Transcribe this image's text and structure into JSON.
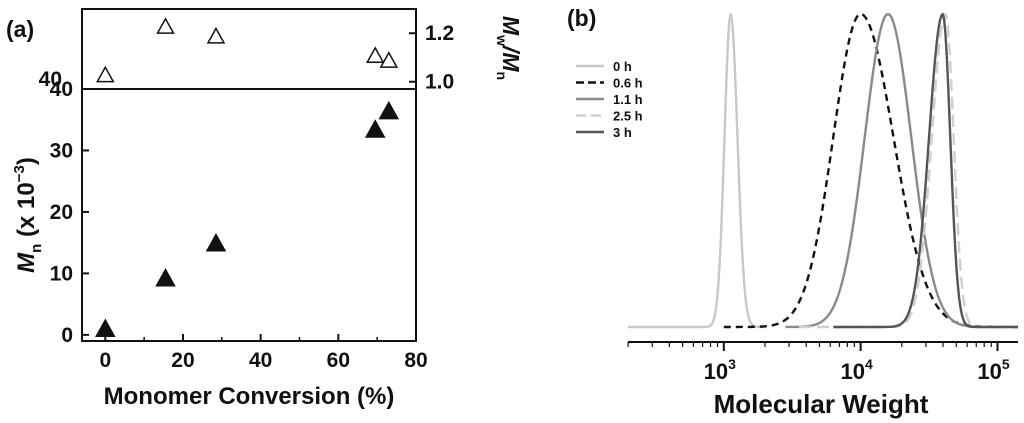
{
  "chart_data": [
    {
      "panel": "(a)",
      "type": "scatter",
      "subplots": [
        {
          "name": "dispersity",
          "ylabel": [
            "M",
            "w",
            "/M",
            "n"
          ],
          "ylim": [
            0.97,
            1.3
          ],
          "yticks": [
            1.0,
            1.2
          ],
          "yticks_labels": [
            "1.0",
            "1.2"
          ],
          "marker": "open-triangle",
          "points": [
            {
              "x": 0,
              "y": 1.03
            },
            {
              "x": 15.5,
              "y": 1.23
            },
            {
              "x": 28.5,
              "y": 1.19
            },
            {
              "x": 69.5,
              "y": 1.11
            },
            {
              "x": 73,
              "y": 1.09
            }
          ]
        },
        {
          "name": "molecular-weight",
          "ylabel": [
            "M",
            "n",
            " (x 10",
            "−3",
            ")"
          ],
          "ylim": [
            -1,
            40
          ],
          "yticks": [
            0,
            10,
            20,
            30,
            40
          ],
          "yticks_labels": [
            "0",
            "10",
            "20",
            "30",
            "40"
          ],
          "marker": "filled-triangle",
          "points": [
            {
              "x": 0,
              "y": 1.1
            },
            {
              "x": 15.5,
              "y": 9.3
            },
            {
              "x": 28.5,
              "y": 15.0
            },
            {
              "x": 69.5,
              "y": 33.5
            },
            {
              "x": 73,
              "y": 36.5
            }
          ]
        }
      ],
      "xlabel": "Monomer Conversion (%)",
      "xlim": [
        -6,
        80
      ],
      "xticks": [
        0,
        20,
        40,
        60,
        80
      ],
      "xticks_labels": [
        "0",
        "20",
        "40",
        "60",
        "80"
      ],
      "overlay_label": "40"
    },
    {
      "panel": "(b)",
      "type": "line",
      "xlabel": "Molecular Weight",
      "xscale": "log",
      "xlim_log10": [
        2.3,
        5.15
      ],
      "xticks_log10": [
        3,
        4,
        5
      ],
      "xtick_labels": [
        {
          "base": "10",
          "exp": "3"
        },
        {
          "base": "10",
          "exp": "4"
        },
        {
          "base": "10",
          "exp": "5"
        }
      ],
      "legend": "top-left",
      "series": [
        {
          "name": "0 h",
          "color": "#c8c8c8",
          "dash": "",
          "peak_log10": 3.05,
          "sigma_left": 0.045,
          "sigma_right": 0.05,
          "range_log10": [
            2.3,
            3.3
          ]
        },
        {
          "name": "0.6 h",
          "color": "#111111",
          "dash": "7,5",
          "peak_log10": 4.0,
          "sigma_left": 0.2,
          "sigma_right": 0.24,
          "range_log10": [
            3.0,
            5.15
          ]
        },
        {
          "name": "1.1 h",
          "color": "#8a8a8a",
          "dash": "",
          "peak_log10": 4.2,
          "sigma_left": 0.17,
          "sigma_right": 0.17,
          "range_log10": [
            3.45,
            4.85
          ]
        },
        {
          "name": "2.5 h",
          "color": "#cfcfcf",
          "dash": "12,6",
          "peak_log10": 4.62,
          "sigma_left": 0.1,
          "sigma_right": 0.06,
          "range_log10": [
            3.55,
            5.15
          ]
        },
        {
          "name": "3 h",
          "color": "#555555",
          "dash": "",
          "peak_log10": 4.6,
          "sigma_left": 0.1,
          "sigma_right": 0.055,
          "range_log10": [
            3.8,
            5.15
          ]
        }
      ]
    }
  ]
}
